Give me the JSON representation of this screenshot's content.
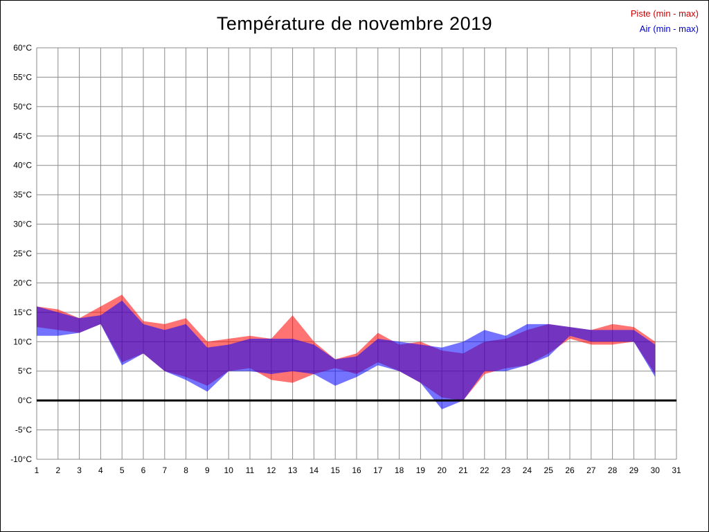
{
  "title": "Température de novembre 2019",
  "legend": {
    "piste": {
      "label": "Piste (min - max)",
      "color": "#cc0000"
    },
    "air": {
      "label": "Air (min - max)",
      "color": "#0000cc"
    }
  },
  "chart_data": {
    "type": "area",
    "title": "Température de novembre 2019",
    "xlabel": "",
    "ylabel": "",
    "xlim": [
      1,
      31
    ],
    "ylim": [
      -10,
      60
    ],
    "x_ticks": [
      1,
      2,
      3,
      4,
      5,
      6,
      7,
      8,
      9,
      10,
      11,
      12,
      13,
      14,
      15,
      16,
      17,
      18,
      19,
      20,
      21,
      22,
      23,
      24,
      25,
      26,
      27,
      28,
      29,
      30,
      31
    ],
    "y_tick_step": 5,
    "y_tick_suffix": "°C",
    "grid": true,
    "grid_color": "#8a8a8a",
    "zero_line": true,
    "zero_line_color": "#000000",
    "zero_line_width": 3,
    "fill_opacity": 0.55,
    "legend_position": "top-right",
    "x": [
      1,
      2,
      3,
      4,
      5,
      6,
      7,
      8,
      9,
      10,
      11,
      12,
      13,
      14,
      15,
      16,
      17,
      18,
      19,
      20,
      21,
      22,
      23,
      24,
      25,
      26,
      27,
      28,
      29,
      30
    ],
    "series": [
      {
        "name": "Piste (min - max)",
        "color": "#ff0000",
        "min": [
          12.5,
          12,
          11.5,
          13,
          6.5,
          8,
          5,
          4,
          2.5,
          5,
          5.5,
          3.5,
          3,
          4.5,
          5.5,
          4.5,
          6.5,
          5,
          3,
          0.5,
          0,
          4.5,
          5.5,
          6,
          8,
          10.5,
          9.5,
          9.5,
          10,
          4.5
        ],
        "max": [
          16,
          15.5,
          14,
          16,
          18,
          13.5,
          13,
          14,
          10,
          10.5,
          11,
          10.5,
          14.5,
          10,
          7,
          8,
          11.5,
          9.5,
          10,
          8.5,
          8,
          10,
          10.5,
          12,
          13,
          12.5,
          12,
          13,
          12.5,
          10
        ]
      },
      {
        "name": "Air (min - max)",
        "color": "#0000ff",
        "min": [
          11,
          11,
          11.5,
          13,
          6,
          8,
          5,
          3.5,
          1.5,
          5,
          5,
          4.5,
          5,
          4.5,
          2.5,
          4,
          6,
          5,
          3,
          -1.5,
          0,
          5,
          5,
          6,
          7.5,
          11,
          10,
          10,
          10,
          4
        ],
        "max": [
          16,
          15,
          14,
          14.5,
          17,
          13,
          12,
          13,
          9,
          9.5,
          10.5,
          10.5,
          10.5,
          9.5,
          7,
          7.5,
          10.5,
          10,
          9.5,
          9,
          10,
          12,
          11,
          13,
          13,
          12.5,
          12,
          12,
          12,
          9.5
        ]
      }
    ]
  }
}
